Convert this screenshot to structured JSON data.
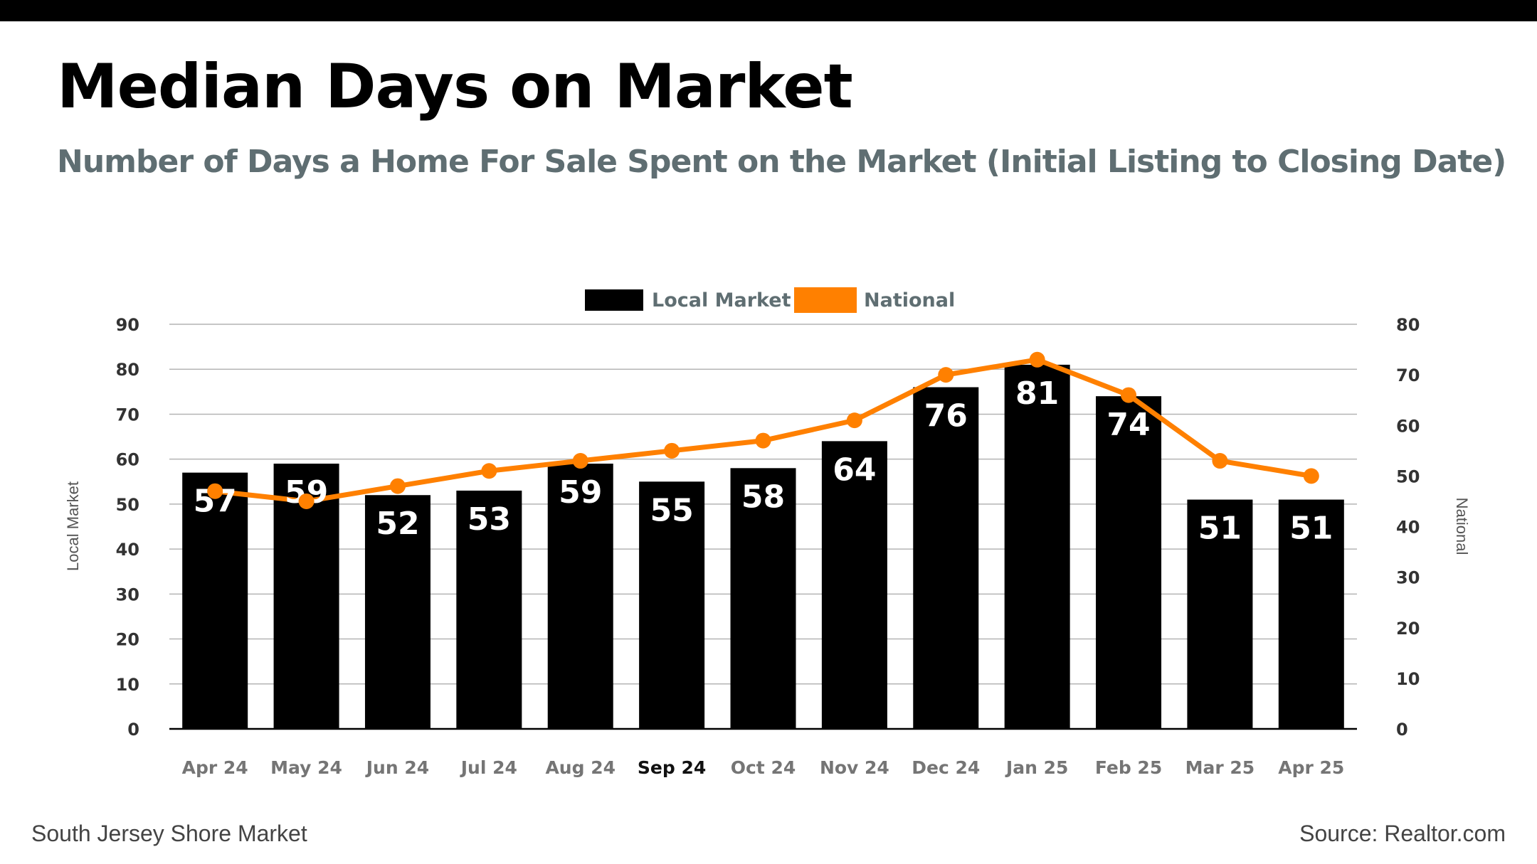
{
  "header": {
    "title": "Median Days on Market",
    "subtitle": "Number of Days a Home For Sale Spent on the Market (Initial Listing to Closing Date)"
  },
  "footer": {
    "left": "South Jersey Shore Market",
    "right": "Source: Realtor.com"
  },
  "chart_data": {
    "type": "bar",
    "categories": [
      "Apr 24",
      "May 24",
      "Jun 24",
      "Jul 24",
      "Aug 24",
      "Sep 24",
      "Oct 24",
      "Nov 24",
      "Dec 24",
      "Jan 25",
      "Feb 25",
      "Mar 25",
      "Apr 25"
    ],
    "highlighted_category": "Sep 24",
    "series": [
      {
        "name": "Local Market",
        "type": "bar",
        "axis": "left",
        "color": "#000000",
        "values": [
          57,
          59,
          52,
          53,
          59,
          55,
          58,
          64,
          76,
          81,
          74,
          51,
          51
        ]
      },
      {
        "name": "National",
        "type": "line",
        "axis": "right",
        "color": "#ff8000",
        "values": [
          47,
          45,
          48,
          51,
          53,
          55,
          57,
          61,
          70,
          73,
          66,
          53,
          50
        ]
      }
    ],
    "ylabel": "Local Market",
    "y2label": "National",
    "ylim": [
      0,
      90
    ],
    "y2lim": [
      0,
      80
    ],
    "yticks": [
      0,
      10,
      20,
      30,
      40,
      50,
      60,
      70,
      80,
      90
    ],
    "y2ticks": [
      0,
      10,
      20,
      30,
      40,
      50,
      60,
      70,
      80
    ],
    "grid": true,
    "legend_position": "top-center",
    "data_labels": "bars"
  }
}
